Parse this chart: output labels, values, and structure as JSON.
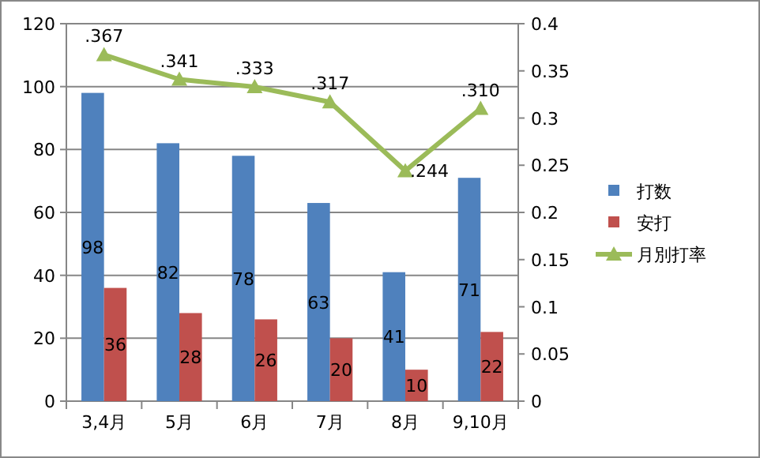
{
  "chart_data": {
    "type": "bar",
    "categories": [
      "3,4月",
      "5月",
      "6月",
      "7月",
      "8月",
      "9,10月"
    ],
    "series": [
      {
        "name": "打数",
        "color": "#4f81bd",
        "values": [
          98,
          82,
          78,
          63,
          41,
          71
        ],
        "value_labels": [
          "98",
          "82",
          "78",
          "63",
          "41",
          "71"
        ]
      },
      {
        "name": "安打",
        "color": "#c0504d",
        "values": [
          36,
          28,
          26,
          20,
          10,
          22
        ],
        "value_labels": [
          "36",
          "28",
          "26",
          "20",
          "10",
          "22"
        ]
      },
      {
        "name": "月別打率",
        "type": "line",
        "axis": "y2",
        "color": "#9bbb59",
        "marker": "triangle",
        "values": [
          0.367,
          0.341,
          0.333,
          0.317,
          0.244,
          0.31
        ],
        "value_labels": [
          ".367",
          ".341",
          ".333",
          ".317",
          ".244",
          ".310"
        ]
      }
    ],
    "ylim": [
      0,
      120
    ],
    "yticks": [
      0,
      20,
      40,
      60,
      80,
      100,
      120
    ],
    "y2lim": [
      0,
      0.4
    ],
    "y2ticks": [
      0,
      0.05,
      0.1,
      0.15,
      0.2,
      0.25,
      0.3,
      0.35,
      0.4
    ],
    "grid": "y",
    "legend": "right"
  }
}
